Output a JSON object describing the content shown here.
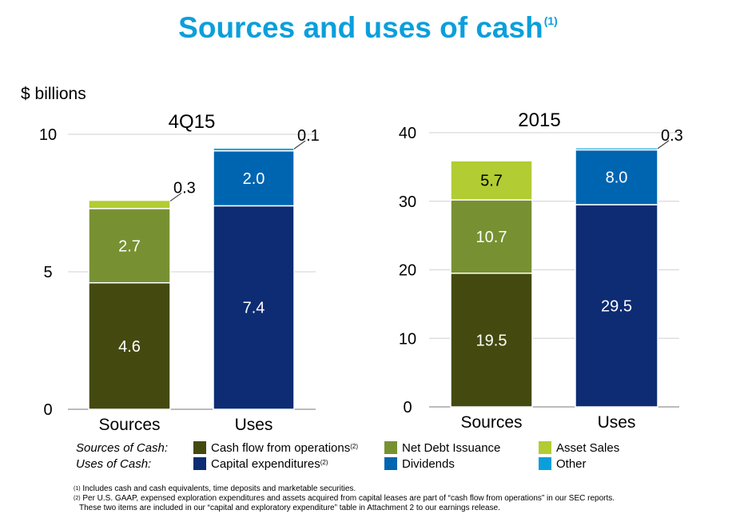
{
  "title": {
    "text": "Sources and uses of cash",
    "footnote_ref": "(1)"
  },
  "units_label": "$ billions",
  "colors": {
    "cash_flow_ops": "#444a0f",
    "net_debt": "#779132",
    "asset_sales": "#b2cc33",
    "capex": "#0d2c73",
    "dividends": "#0065b1",
    "other": "#0a9fdb",
    "title": "#0a9fdb"
  },
  "chart_data": [
    {
      "type": "bar",
      "stacked": true,
      "title": "4Q15",
      "ylabel": "$ billions",
      "categories": [
        "Sources",
        "Uses"
      ],
      "ylim": [
        0,
        10
      ],
      "yticks": [
        0,
        5,
        10
      ],
      "grid": true,
      "series": [
        {
          "name": "Cash flow from operations",
          "color_key": "cash_flow_ops",
          "values": [
            4.6,
            null
          ],
          "label_color": "#ffffff",
          "labels": [
            "4.6",
            null
          ]
        },
        {
          "name": "Net Debt Issuance",
          "color_key": "net_debt",
          "values": [
            2.7,
            null
          ],
          "label_color": "#ffffff",
          "labels": [
            "2.7",
            null
          ]
        },
        {
          "name": "Asset Sales",
          "color_key": "asset_sales",
          "values": [
            0.3,
            null
          ],
          "label_color": "#000000",
          "labels": [
            "0.3",
            null
          ],
          "callout": true
        },
        {
          "name": "Capital expenditures",
          "color_key": "capex",
          "values": [
            null,
            7.4
          ],
          "label_color": "#ffffff",
          "labels": [
            null,
            "7.4"
          ]
        },
        {
          "name": "Dividends",
          "color_key": "dividends",
          "values": [
            null,
            2.0
          ],
          "label_color": "#ffffff",
          "labels": [
            null,
            "2.0"
          ]
        },
        {
          "name": "Other",
          "color_key": "other",
          "values": [
            null,
            0.1
          ],
          "label_color": "#000000",
          "labels": [
            null,
            "0.1"
          ],
          "callout": true
        }
      ]
    },
    {
      "type": "bar",
      "stacked": true,
      "title": "2015",
      "ylabel": "$ billions",
      "categories": [
        "Sources",
        "Uses"
      ],
      "ylim": [
        0,
        40
      ],
      "yticks": [
        0,
        10,
        20,
        30,
        40
      ],
      "grid": true,
      "series": [
        {
          "name": "Cash flow from operations",
          "color_key": "cash_flow_ops",
          "values": [
            19.5,
            null
          ],
          "label_color": "#ffffff",
          "labels": [
            "19.5",
            null
          ]
        },
        {
          "name": "Net Debt Issuance",
          "color_key": "net_debt",
          "values": [
            10.7,
            null
          ],
          "label_color": "#ffffff",
          "labels": [
            "10.7",
            null
          ]
        },
        {
          "name": "Asset Sales",
          "color_key": "asset_sales",
          "values": [
            5.7,
            null
          ],
          "label_color": "#000000",
          "labels": [
            "5.7",
            null
          ]
        },
        {
          "name": "Capital expenditures",
          "color_key": "capex",
          "values": [
            null,
            29.5
          ],
          "label_color": "#ffffff",
          "labels": [
            null,
            "29.5"
          ]
        },
        {
          "name": "Dividends",
          "color_key": "dividends",
          "values": [
            null,
            8.0
          ],
          "label_color": "#ffffff",
          "labels": [
            null,
            "8.0"
          ]
        },
        {
          "name": "Other",
          "color_key": "other",
          "values": [
            null,
            0.3
          ],
          "label_color": "#000000",
          "labels": [
            null,
            "0.3"
          ],
          "callout": true
        }
      ]
    }
  ],
  "legend": {
    "sources_label": "Sources of Cash:",
    "uses_label": "Uses of Cash:",
    "sources": [
      {
        "label": "Cash flow from operations",
        "sup": "(2)",
        "color_key": "cash_flow_ops"
      },
      {
        "label": "Net Debt Issuance",
        "sup": "",
        "color_key": "net_debt"
      },
      {
        "label": "Asset Sales",
        "sup": "",
        "color_key": "asset_sales"
      }
    ],
    "uses": [
      {
        "label": "Capital expenditures",
        "sup": "(2)",
        "color_key": "capex"
      },
      {
        "label": "Dividends",
        "sup": "",
        "color_key": "dividends"
      },
      {
        "label": "Other",
        "sup": "",
        "color_key": "other"
      }
    ]
  },
  "footnotes": [
    {
      "ref": "(1)",
      "text": "Includes cash and cash equivalents, time deposits and marketable securities."
    },
    {
      "ref": "(2)",
      "text": "Per U.S. GAAP, expensed exploration expenditures and assets acquired from capital leases are part of “cash flow from operations” in our SEC reports."
    },
    {
      "ref": "",
      "text": "These two items are included in our “capital and exploratory expenditure” table in Attachment 2 to our earnings release."
    }
  ]
}
